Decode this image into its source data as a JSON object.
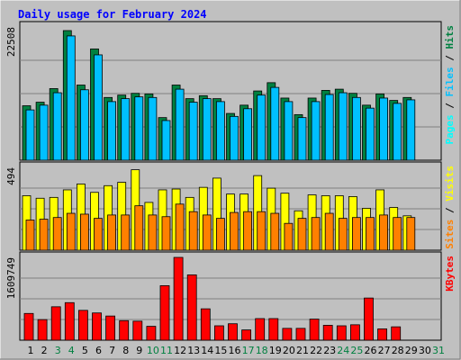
{
  "chart_data": {
    "type": "bar",
    "title": "Daily usage for February 2024",
    "x": [
      "1",
      "2",
      "3",
      "4",
      "5",
      "6",
      "7",
      "8",
      "9",
      "10",
      "11",
      "12",
      "13",
      "14",
      "15",
      "16",
      "17",
      "18",
      "19",
      "20",
      "21",
      "22",
      "23",
      "24",
      "25",
      "26",
      "27",
      "28",
      "29",
      "30",
      "31"
    ],
    "weekend_days": [
      "3",
      "4",
      "10",
      "11",
      "17",
      "18",
      "24",
      "25",
      "31"
    ],
    "bar_days": 29,
    "panels": [
      {
        "name": "hits-files-pages",
        "max_label": "22508",
        "ylim": [
          0,
          22508
        ],
        "series": [
          {
            "name": "Hits",
            "values": [
              9200,
              9800,
              12100,
              21900,
              12700,
              18800,
              10600,
              11000,
              11300,
              11200,
              7200,
              12700,
              10400,
              10900,
              10400,
              7900,
              9300,
              11700,
              13100,
              10500,
              7700,
              10500,
              11800,
              12000,
              11300,
              9300,
              11200,
              10100,
              10600
            ]
          },
          {
            "name": "Files",
            "values": [
              8500,
              9300,
              11400,
              21000,
              11900,
              17800,
              9900,
              10400,
              10700,
              10600,
              6700,
              12000,
              9800,
              10400,
              9900,
              7400,
              8700,
              11000,
              12300,
              9900,
              7200,
              9900,
              11100,
              11400,
              10600,
              8800,
              10500,
              9600,
              10200
            ]
          },
          {
            "name": "Pages",
            "values": [
              0,
              0,
              0,
              0,
              0,
              0,
              0,
              0,
              0,
              0,
              0,
              0,
              0,
              0,
              0,
              0,
              0,
              0,
              0,
              0,
              0,
              0,
              0,
              0,
              0,
              0,
              0,
              0,
              0
            ]
          }
        ],
        "side_labels": [
          "Pages",
          "Files",
          "Hits"
        ]
      },
      {
        "name": "visits-sites",
        "max_label": "494",
        "ylim": [
          0,
          494
        ],
        "series": [
          {
            "name": "Visits",
            "values": [
              325,
              310,
              315,
              360,
              395,
              345,
              385,
              405,
              480,
              285,
              360,
              365,
              315,
              375,
              430,
              335,
              335,
              445,
              370,
              340,
              235,
              330,
              325,
              325,
              320,
              250,
              360,
              255,
              205
            ]
          },
          {
            "name": "Sites",
            "values": [
              180,
              185,
              195,
              220,
              215,
              190,
              210,
              210,
              265,
              210,
              200,
              275,
              230,
              210,
              190,
              225,
              230,
              230,
              220,
              160,
              190,
              195,
              220,
              190,
              195,
              195,
              210,
              195,
              195
            ]
          }
        ],
        "side_labels": [
          "Sites",
          "Visits"
        ]
      },
      {
        "name": "kbytes",
        "max_label": "1609749",
        "ylim": [
          0,
          1609749
        ],
        "series": [
          {
            "name": "KBytes",
            "values": [
              520000,
              400000,
              650000,
              730000,
              580000,
              530000,
              470000,
              380000,
              370000,
              270000,
              1060000,
              1609749,
              1270000,
              610000,
              280000,
              320000,
              200000,
              420000,
              420000,
              230000,
              230000,
              410000,
              290000,
              280000,
              300000,
              820000,
              220000,
              260000,
              0
            ]
          }
        ],
        "side_labels": [
          "KBytes"
        ]
      }
    ],
    "colors": {
      "hits": "#008040",
      "files": "#00C0FF",
      "pages": "#00FFFF",
      "visits": "#FFFF00",
      "sites": "#FF8000",
      "kbytes": "#FF0000",
      "title": "#0000FF",
      "weekday_tick": "#000000",
      "weekend_tick": "#008040",
      "panel_bg": "#C0C0C0",
      "frame_bg": "#C0C0C0"
    }
  }
}
